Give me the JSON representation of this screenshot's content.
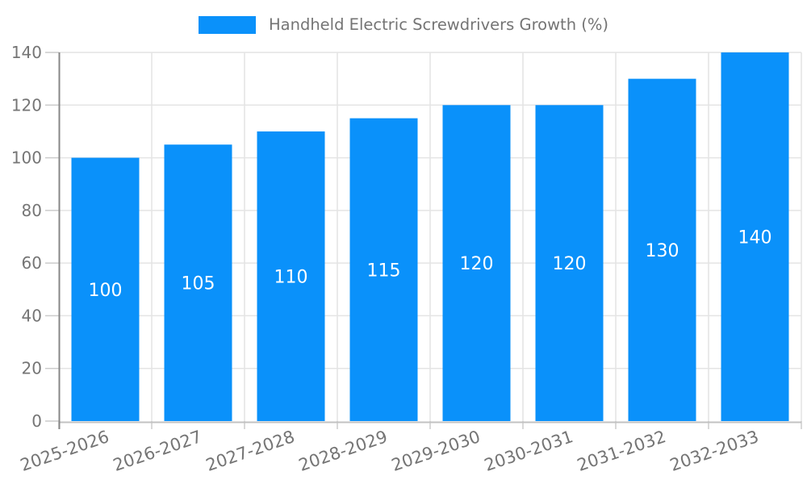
{
  "legend": {
    "label": "Handheld Electric Screwdrivers Growth (%)"
  },
  "chart_data": {
    "type": "bar",
    "title": "Handheld Electric Screwdrivers Growth (%)",
    "categories": [
      "2025-2026",
      "2026-2027",
      "2027-2028",
      "2028-2029",
      "2029-2030",
      "2030-2031",
      "2031-2032",
      "2032-2033"
    ],
    "values": [
      100,
      105,
      110,
      115,
      120,
      120,
      130,
      140
    ],
    "bar_labels": [
      "100",
      "105",
      "110",
      "115",
      "120",
      "120",
      "130",
      "140"
    ],
    "xlabel": "",
    "ylabel": "",
    "ylim": [
      0,
      140
    ],
    "yticks": [
      0,
      20,
      40,
      60,
      80,
      100,
      120,
      140
    ],
    "grid": "horizontal and vertical light gridlines",
    "legend_position": "top-center",
    "x_label_rotation_deg": -19,
    "colors": {
      "bar": "#0a91fa",
      "bar_value_label": "#ffffff",
      "axis_text": "#757575",
      "gridline": "#e4e4e4",
      "tick": "#cccccc",
      "y_axis_line": "#878787",
      "x_axis_line": "#c2c2c2",
      "background": "#ffffff"
    }
  }
}
